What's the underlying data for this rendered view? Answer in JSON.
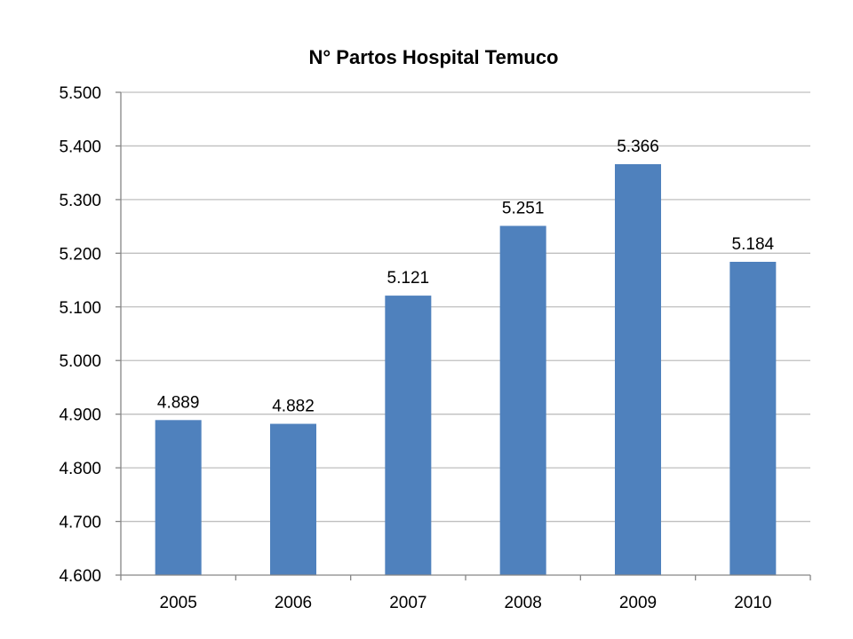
{
  "chart_data": {
    "type": "bar",
    "title": "N° Partos Hospital Temuco",
    "categories": [
      "2005",
      "2006",
      "2007",
      "2008",
      "2009",
      "2010"
    ],
    "series": [
      {
        "values": [
          4889,
          4882,
          5121,
          5251,
          5366,
          5184
        ],
        "data_labels": [
          "4.889",
          "4.882",
          "5.121",
          "5.251",
          "5.366",
          "5.184"
        ],
        "color": "#4f81bd"
      }
    ],
    "ylim": [
      4600,
      5500
    ],
    "yticks": [
      4600,
      4700,
      4800,
      4900,
      5000,
      5100,
      5200,
      5300,
      5400,
      5500
    ],
    "ytick_labels": [
      "4.600",
      "4.700",
      "4.800",
      "4.900",
      "5.000",
      "5.100",
      "5.200",
      "5.300",
      "5.400",
      "5.500"
    ],
    "grid": true,
    "legend": "none",
    "xlabel": "",
    "ylabel": "",
    "colors": {
      "bar": "#4f81bd",
      "grid": "#bfbfbf",
      "axis": "#868686"
    }
  }
}
